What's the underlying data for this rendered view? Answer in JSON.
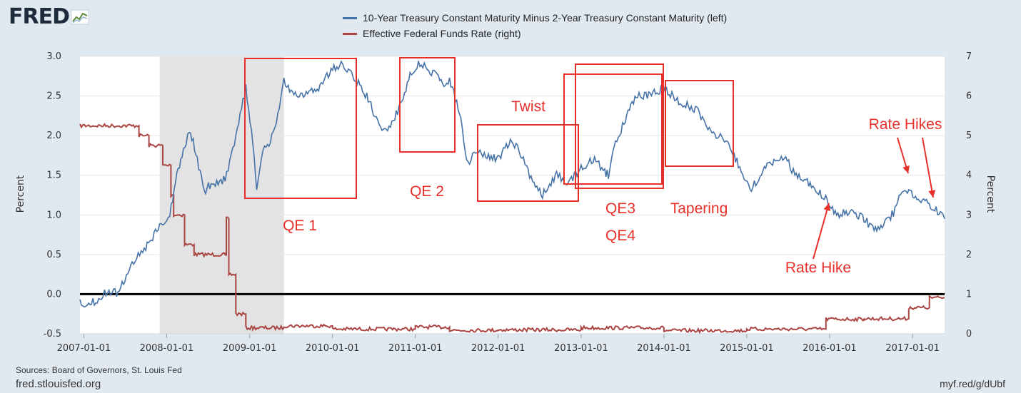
{
  "logo": {
    "text": "FRED"
  },
  "legend": [
    {
      "label": "10-Year Treasury Constant Maturity Minus 2-Year Treasury Constant Maturity (left)",
      "color": "#4572a7"
    },
    {
      "label": "Effective Federal Funds Rate (right)",
      "color": "#aa4643"
    }
  ],
  "footer": {
    "sources": "Sources: Board of Governors, St. Louis Fed",
    "site": "fred.stlouisfed.org",
    "shortlink": "myf.red/g/dUbf"
  },
  "colors": {
    "background": "#e1e9f0",
    "plot": "#ffffff",
    "recession": "#e3e3e3",
    "annotation": "#e8302a",
    "zero_line": "#000000"
  },
  "chart_data": {
    "type": "line",
    "x_axis": {
      "ticks": [
        "2007-01-01",
        "2008-01-01",
        "2009-01-01",
        "2010-01-01",
        "2011-01-01",
        "2012-01-01",
        "2013-01-01",
        "2014-01-01",
        "2015-01-01",
        "2016-01-01",
        "2017-01-01"
      ],
      "range": [
        "2006-12-15",
        "2017-05-22"
      ]
    },
    "y_left": {
      "label": "Percent",
      "range": [
        -0.5,
        3.0
      ],
      "ticks": [
        "3.0",
        "2.5",
        "2.0",
        "1.5",
        "1.0",
        "0.5",
        "0.0",
        "-0.5"
      ]
    },
    "y_right": {
      "label": "Percent",
      "range": [
        0,
        7
      ],
      "ticks": [
        "7",
        "6",
        "5",
        "4",
        "3",
        "2",
        "1",
        "0"
      ]
    },
    "recession": {
      "start": "2007-12-01",
      "end": "2009-06-01"
    },
    "zero_line": 0.0,
    "series": [
      {
        "axis": "left",
        "name": "10-Year Treasury Constant Maturity Minus 2-Year Treasury Constant Maturity (left)",
        "points": [
          [
            "2006-12-15",
            -0.12
          ],
          [
            "2007-03-01",
            -0.08
          ],
          [
            "2007-04-15",
            0.05
          ],
          [
            "2007-06-01",
            0.0
          ],
          [
            "2007-07-01",
            0.2
          ],
          [
            "2007-08-15",
            0.45
          ],
          [
            "2007-10-01",
            0.6
          ],
          [
            "2007-12-01",
            0.85
          ],
          [
            "2008-01-15",
            1.0
          ],
          [
            "2008-02-15",
            1.5
          ],
          [
            "2008-03-15",
            1.85
          ],
          [
            "2008-04-15",
            2.05
          ],
          [
            "2008-05-15",
            1.7
          ],
          [
            "2008-06-15",
            1.3
          ],
          [
            "2008-07-15",
            1.4
          ],
          [
            "2008-09-15",
            1.45
          ],
          [
            "2008-11-01",
            2.0
          ],
          [
            "2008-12-15",
            2.6
          ],
          [
            "2009-01-15",
            1.9
          ],
          [
            "2009-02-01",
            1.3
          ],
          [
            "2009-03-01",
            1.8
          ],
          [
            "2009-04-15",
            2.0
          ],
          [
            "2009-06-01",
            2.7
          ],
          [
            "2009-07-15",
            2.5
          ],
          [
            "2009-09-01",
            2.5
          ],
          [
            "2009-11-01",
            2.6
          ],
          [
            "2010-01-01",
            2.85
          ],
          [
            "2010-02-15",
            2.9
          ],
          [
            "2010-04-01",
            2.75
          ],
          [
            "2010-06-01",
            2.5
          ],
          [
            "2010-08-01",
            2.1
          ],
          [
            "2010-09-01",
            2.05
          ],
          [
            "2010-10-15",
            2.3
          ],
          [
            "2010-12-15",
            2.8
          ],
          [
            "2011-01-15",
            2.9
          ],
          [
            "2011-03-01",
            2.85
          ],
          [
            "2011-05-01",
            2.65
          ],
          [
            "2011-06-01",
            2.7
          ],
          [
            "2011-07-15",
            2.3
          ],
          [
            "2011-08-15",
            1.65
          ],
          [
            "2011-10-01",
            1.8
          ],
          [
            "2011-11-01",
            1.75
          ],
          [
            "2012-01-01",
            1.7
          ],
          [
            "2012-03-01",
            1.95
          ],
          [
            "2012-04-15",
            1.75
          ],
          [
            "2012-06-01",
            1.4
          ],
          [
            "2012-07-15",
            1.25
          ],
          [
            "2012-09-15",
            1.5
          ],
          [
            "2012-11-01",
            1.4
          ],
          [
            "2013-01-01",
            1.6
          ],
          [
            "2013-03-01",
            1.7
          ],
          [
            "2013-04-15",
            1.55
          ],
          [
            "2013-05-01",
            1.5
          ],
          [
            "2013-06-01",
            1.9
          ],
          [
            "2013-07-15",
            2.2
          ],
          [
            "2013-09-01",
            2.5
          ],
          [
            "2013-11-01",
            2.5
          ],
          [
            "2013-12-31",
            2.6
          ],
          [
            "2014-03-01",
            2.45
          ],
          [
            "2014-06-01",
            2.3
          ],
          [
            "2014-08-01",
            2.05
          ],
          [
            "2014-10-01",
            1.95
          ],
          [
            "2014-12-01",
            1.6
          ],
          [
            "2015-01-15",
            1.3
          ],
          [
            "2015-03-01",
            1.5
          ],
          [
            "2015-05-01",
            1.7
          ],
          [
            "2015-06-15",
            1.75
          ],
          [
            "2015-08-01",
            1.5
          ],
          [
            "2015-10-01",
            1.4
          ],
          [
            "2015-12-15",
            1.2
          ],
          [
            "2016-02-01",
            1.0
          ],
          [
            "2016-04-01",
            1.05
          ],
          [
            "2016-06-01",
            0.95
          ],
          [
            "2016-07-15",
            0.8
          ],
          [
            "2016-09-01",
            0.9
          ],
          [
            "2016-10-15",
            1.05
          ],
          [
            "2016-11-15",
            1.3
          ],
          [
            "2016-12-15",
            1.3
          ],
          [
            "2017-02-01",
            1.2
          ],
          [
            "2017-03-15",
            1.15
          ],
          [
            "2017-05-22",
            0.95
          ]
        ]
      },
      {
        "axis": "right",
        "name": "Effective Federal Funds Rate (right)",
        "points": [
          [
            "2006-12-15",
            5.25
          ],
          [
            "2007-08-01",
            5.25
          ],
          [
            "2007-09-01",
            5.0
          ],
          [
            "2007-10-15",
            4.75
          ],
          [
            "2007-12-15",
            4.25
          ],
          [
            "2008-01-20",
            3.5
          ],
          [
            "2008-02-01",
            3.0
          ],
          [
            "2008-03-20",
            2.25
          ],
          [
            "2008-05-01",
            2.0
          ],
          [
            "2008-09-15",
            2.0
          ],
          [
            "2008-09-20",
            2.9
          ],
          [
            "2008-10-01",
            1.5
          ],
          [
            "2008-11-01",
            0.5
          ],
          [
            "2008-12-15",
            0.15
          ],
          [
            "2009-01-15",
            0.15
          ],
          [
            "2009-06-01",
            0.2
          ],
          [
            "2010-01-01",
            0.12
          ],
          [
            "2011-01-01",
            0.17
          ],
          [
            "2011-06-01",
            0.09
          ],
          [
            "2012-01-01",
            0.1
          ],
          [
            "2013-01-01",
            0.15
          ],
          [
            "2014-01-01",
            0.08
          ],
          [
            "2015-01-01",
            0.12
          ],
          [
            "2015-12-16",
            0.37
          ],
          [
            "2016-06-01",
            0.38
          ],
          [
            "2016-12-15",
            0.66
          ],
          [
            "2017-03-16",
            0.91
          ],
          [
            "2017-05-22",
            0.91
          ]
        ]
      }
    ],
    "annotations": [
      {
        "text": "QE 1",
        "color": "#e8302a"
      },
      {
        "text": "QE 2",
        "color": "#e8302a"
      },
      {
        "text": "Twist",
        "color": "#e8302a"
      },
      {
        "text": "QE3",
        "color": "#e8302a"
      },
      {
        "text": "QE4",
        "color": "#e8302a"
      },
      {
        "text": "Tapering",
        "color": "#e8302a"
      },
      {
        "text": "Rate Hike",
        "color": "#e8302a"
      },
      {
        "text": "Rate Hikes",
        "color": "#e8302a"
      }
    ]
  }
}
